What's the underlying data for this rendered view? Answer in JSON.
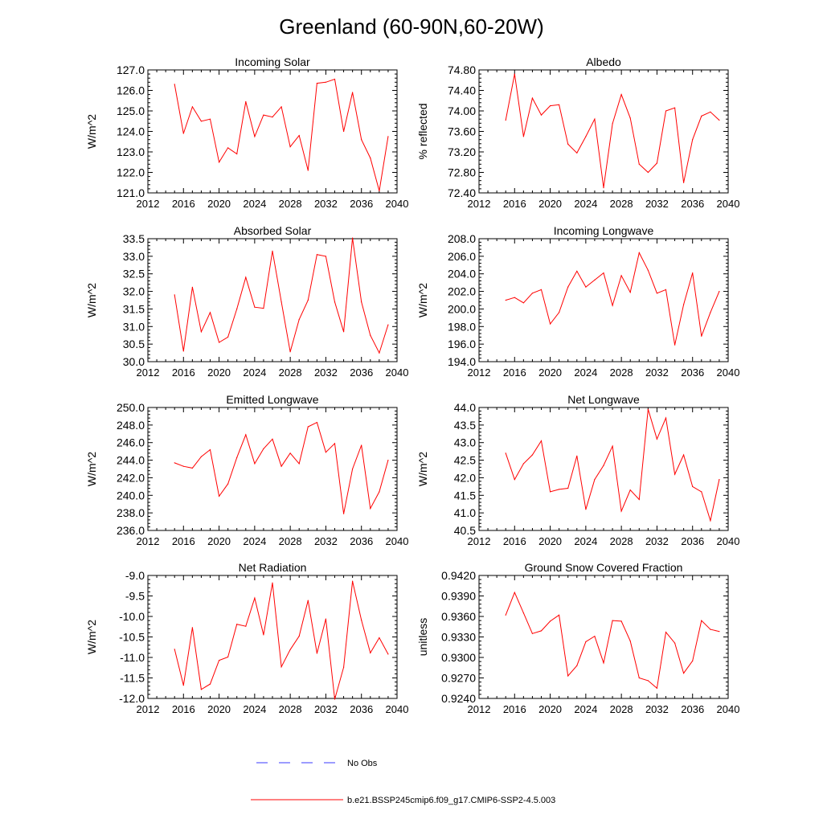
{
  "figure": {
    "title": "Greenland (60-90N,60-20W)",
    "legend": {
      "obs_label": "No Obs",
      "model_label": "b.e21.BSSP245cmip6.f09_g17.CMIP6-SSP2-4.5.003",
      "obs_color": "#3a3aff",
      "model_color": "#ff0000"
    }
  },
  "chart_data": [
    {
      "type": "line",
      "title": "Incoming Solar",
      "ylabel": "W/m^2",
      "xlabel": "",
      "xlim": [
        2012,
        2040
      ],
      "ylim": [
        121.0,
        127.0
      ],
      "xticks": [
        2012,
        2016,
        2020,
        2024,
        2028,
        2032,
        2036,
        2040
      ],
      "yticks": [
        121.0,
        122.0,
        123.0,
        124.0,
        125.0,
        126.0,
        127.0
      ],
      "ydecimals": 1,
      "series": [
        {
          "name": "b.e21.BSSP245cmip6.f09_g17.CMIP6-SSP2-4.5.003",
          "x": [
            2015,
            2016,
            2017,
            2018,
            2019,
            2020,
            2021,
            2022,
            2023,
            2024,
            2025,
            2026,
            2027,
            2028,
            2029,
            2030,
            2031,
            2032,
            2033,
            2034,
            2035,
            2036,
            2037,
            2038,
            2039
          ],
          "values": [
            126.3,
            123.9,
            125.2,
            124.5,
            124.6,
            122.5,
            123.2,
            122.9,
            125.45,
            123.75,
            124.8,
            124.7,
            125.2,
            123.25,
            123.8,
            122.1,
            126.35,
            126.4,
            126.55,
            124.0,
            125.9,
            123.6,
            122.7,
            121.1,
            123.75
          ]
        }
      ]
    },
    {
      "type": "line",
      "title": "Albedo",
      "ylabel": "% reflected",
      "xlabel": "",
      "xlim": [
        2012,
        2040
      ],
      "ylim": [
        72.4,
        74.8
      ],
      "xticks": [
        2012,
        2016,
        2020,
        2024,
        2028,
        2032,
        2036,
        2040
      ],
      "yticks": [
        72.4,
        72.8,
        73.2,
        73.6,
        74.0,
        74.4,
        74.8
      ],
      "ydecimals": 2,
      "series": [
        {
          "name": "b.e21.BSSP245cmip6.f09_g17.CMIP6-SSP2-4.5.003",
          "x": [
            2015,
            2016,
            2017,
            2018,
            2019,
            2020,
            2021,
            2022,
            2023,
            2024,
            2025,
            2026,
            2027,
            2028,
            2029,
            2030,
            2031,
            2032,
            2033,
            2034,
            2035,
            2036,
            2037,
            2038,
            2039
          ],
          "values": [
            73.82,
            74.72,
            73.5,
            74.25,
            73.92,
            74.1,
            74.12,
            73.35,
            73.18,
            73.5,
            73.84,
            72.5,
            73.75,
            74.32,
            73.86,
            72.96,
            72.8,
            72.98,
            74.0,
            74.06,
            72.6,
            73.44,
            73.9,
            73.98,
            73.82
          ]
        }
      ]
    },
    {
      "type": "line",
      "title": "Absorbed Solar",
      "ylabel": "W/m^2",
      "xlabel": "",
      "xlim": [
        2012,
        2040
      ],
      "ylim": [
        30.0,
        33.5
      ],
      "xticks": [
        2012,
        2016,
        2020,
        2024,
        2028,
        2032,
        2036,
        2040
      ],
      "yticks": [
        30.0,
        30.5,
        31.0,
        31.5,
        32.0,
        32.5,
        33.0,
        33.5
      ],
      "ydecimals": 1,
      "series": [
        {
          "name": "b.e21.BSSP245cmip6.f09_g17.CMIP6-SSP2-4.5.003",
          "x": [
            2015,
            2016,
            2017,
            2018,
            2019,
            2020,
            2021,
            2022,
            2023,
            2024,
            2025,
            2026,
            2027,
            2028,
            2029,
            2030,
            2031,
            2032,
            2033,
            2034,
            2035,
            2036,
            2037,
            2038,
            2039
          ],
          "values": [
            31.9,
            30.3,
            32.12,
            30.85,
            31.4,
            30.55,
            30.7,
            31.5,
            32.4,
            31.55,
            31.52,
            33.15,
            31.7,
            30.28,
            31.2,
            31.75,
            33.05,
            33.0,
            31.7,
            30.85,
            33.52,
            31.7,
            30.75,
            30.25,
            31.05
          ]
        }
      ]
    },
    {
      "type": "line",
      "title": "Incoming Longwave",
      "ylabel": "W/m^2",
      "xlabel": "",
      "xlim": [
        2012,
        2040
      ],
      "ylim": [
        194.0,
        208.0
      ],
      "xticks": [
        2012,
        2016,
        2020,
        2024,
        2028,
        2032,
        2036,
        2040
      ],
      "yticks": [
        194.0,
        196.0,
        198.0,
        200.0,
        202.0,
        204.0,
        206.0,
        208.0
      ],
      "ydecimals": 1,
      "series": [
        {
          "name": "b.e21.BSSP245cmip6.f09_g17.CMIP6-SSP2-4.5.003",
          "x": [
            2015,
            2016,
            2017,
            2018,
            2019,
            2020,
            2021,
            2022,
            2023,
            2024,
            2025,
            2026,
            2027,
            2028,
            2029,
            2030,
            2031,
            2032,
            2033,
            2034,
            2035,
            2036,
            2037,
            2038,
            2039
          ],
          "values": [
            201.0,
            201.3,
            200.7,
            201.8,
            202.2,
            198.3,
            199.6,
            202.5,
            204.3,
            202.5,
            203.3,
            204.1,
            200.4,
            203.8,
            201.9,
            206.4,
            204.4,
            201.8,
            202.2,
            195.9,
            200.5,
            204.1,
            196.9,
            199.6,
            202.0
          ]
        }
      ]
    },
    {
      "type": "line",
      "title": "Emitted Longwave",
      "ylabel": "W/m^2",
      "xlabel": "",
      "xlim": [
        2012,
        2040
      ],
      "ylim": [
        236.0,
        250.0
      ],
      "xticks": [
        2012,
        2016,
        2020,
        2024,
        2028,
        2032,
        2036,
        2040
      ],
      "yticks": [
        236.0,
        238.0,
        240.0,
        242.0,
        244.0,
        246.0,
        248.0,
        250.0
      ],
      "ydecimals": 1,
      "series": [
        {
          "name": "b.e21.BSSP245cmip6.f09_g17.CMIP6-SSP2-4.5.003",
          "x": [
            2015,
            2016,
            2017,
            2018,
            2019,
            2020,
            2021,
            2022,
            2023,
            2024,
            2025,
            2026,
            2027,
            2028,
            2029,
            2030,
            2031,
            2032,
            2033,
            2034,
            2035,
            2036,
            2037,
            2038,
            2039
          ],
          "values": [
            243.7,
            243.3,
            243.1,
            244.4,
            245.2,
            239.9,
            241.3,
            244.3,
            246.9,
            243.6,
            245.3,
            246.4,
            243.3,
            244.8,
            243.6,
            247.8,
            248.3,
            244.9,
            245.9,
            237.9,
            243.0,
            245.7,
            238.5,
            240.4,
            244.0
          ]
        }
      ]
    },
    {
      "type": "line",
      "title": "Net Longwave",
      "ylabel": "W/m^2",
      "xlabel": "",
      "xlim": [
        2012,
        2040
      ],
      "ylim": [
        40.5,
        44.0
      ],
      "xticks": [
        2012,
        2016,
        2020,
        2024,
        2028,
        2032,
        2036,
        2040
      ],
      "yticks": [
        40.5,
        41.0,
        41.5,
        42.0,
        42.5,
        43.0,
        43.5,
        44.0
      ],
      "ydecimals": 1,
      "series": [
        {
          "name": "b.e21.BSSP245cmip6.f09_g17.CMIP6-SSP2-4.5.003",
          "x": [
            2015,
            2016,
            2017,
            2018,
            2019,
            2020,
            2021,
            2022,
            2023,
            2024,
            2025,
            2026,
            2027,
            2028,
            2029,
            2030,
            2031,
            2032,
            2033,
            2034,
            2035,
            2036,
            2037,
            2038,
            2039
          ],
          "values": [
            42.7,
            41.95,
            42.4,
            42.65,
            43.05,
            41.6,
            41.67,
            41.7,
            42.62,
            41.1,
            41.95,
            42.35,
            42.9,
            41.05,
            41.65,
            41.38,
            43.95,
            43.1,
            43.7,
            42.1,
            42.65,
            41.75,
            41.6,
            40.78,
            41.95
          ]
        }
      ]
    },
    {
      "type": "line",
      "title": "Net Radiation",
      "ylabel": "W/m^2",
      "xlabel": "",
      "xlim": [
        2012,
        2040
      ],
      "ylim": [
        -12.0,
        -9.0
      ],
      "xticks": [
        2012,
        2016,
        2020,
        2024,
        2028,
        2032,
        2036,
        2040
      ],
      "yticks": [
        -12.0,
        -11.5,
        -11.0,
        -10.5,
        -10.0,
        -9.5,
        -9.0
      ],
      "ydecimals": 1,
      "series": [
        {
          "name": "b.e21.BSSP245cmip6.f09_g17.CMIP6-SSP2-4.5.003",
          "x": [
            2015,
            2016,
            2017,
            2018,
            2019,
            2020,
            2021,
            2022,
            2023,
            2024,
            2025,
            2026,
            2027,
            2028,
            2029,
            2030,
            2031,
            2032,
            2033,
            2034,
            2035,
            2036,
            2037,
            2038,
            2039
          ],
          "values": [
            -10.8,
            -11.68,
            -10.27,
            -11.78,
            -11.65,
            -11.07,
            -10.99,
            -10.19,
            -10.24,
            -9.55,
            -10.45,
            -9.18,
            -11.23,
            -10.81,
            -10.48,
            -9.61,
            -10.9,
            -10.06,
            -12.02,
            -11.24,
            -9.14,
            -10.09,
            -10.89,
            -10.52,
            -10.92
          ]
        }
      ]
    },
    {
      "type": "line",
      "title": "Ground Snow Covered Fraction",
      "ylabel": "unitless",
      "xlabel": "",
      "xlim": [
        2012,
        2040
      ],
      "ylim": [
        0.924,
        0.942
      ],
      "xticks": [
        2012,
        2016,
        2020,
        2024,
        2028,
        2032,
        2036,
        2040
      ],
      "yticks": [
        0.924,
        0.927,
        0.93,
        0.933,
        0.936,
        0.939,
        0.942
      ],
      "ydecimals": 4,
      "series": [
        {
          "name": "b.e21.BSSP245cmip6.f09_g17.CMIP6-SSP2-4.5.003",
          "x": [
            2015,
            2016,
            2017,
            2018,
            2019,
            2020,
            2021,
            2022,
            2023,
            2024,
            2025,
            2026,
            2027,
            2028,
            2029,
            2030,
            2031,
            2032,
            2033,
            2034,
            2035,
            2036,
            2037,
            2038,
            2039
          ],
          "values": [
            0.9362,
            0.9395,
            0.9365,
            0.9335,
            0.9339,
            0.9353,
            0.9362,
            0.9273,
            0.9288,
            0.9323,
            0.9331,
            0.9292,
            0.9354,
            0.9353,
            0.9324,
            0.927,
            0.9266,
            0.9255,
            0.9337,
            0.9321,
            0.9277,
            0.9295,
            0.9354,
            0.9341,
            0.9338
          ]
        }
      ]
    }
  ]
}
